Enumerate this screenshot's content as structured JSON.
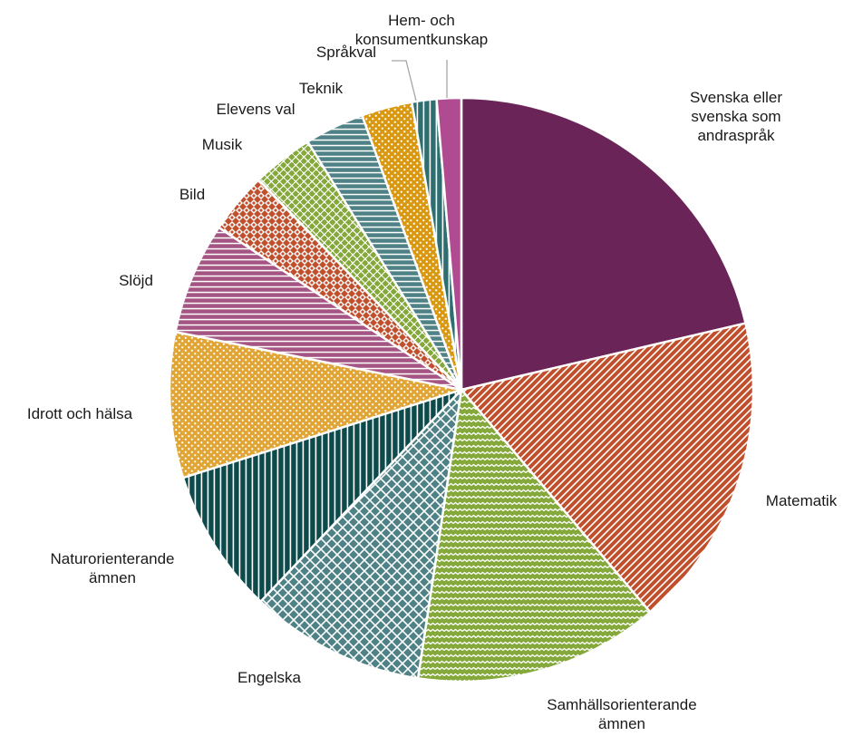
{
  "chart_data": {
    "type": "pie",
    "title": "",
    "unit": "",
    "start_angle_deg": 0,
    "direction": "clockwise",
    "slices": [
      {
        "label": [
          "Svenska eller",
          "svenska som",
          "andraspråk"
        ],
        "value": 22.0,
        "color": "#6b2457",
        "pattern": "solid"
      },
      {
        "label": [
          "Matematik"
        ],
        "value": 18.0,
        "color": "#c0502d",
        "pattern": "diagonal"
      },
      {
        "label": [
          "Samhällsorienterande",
          "ämnen"
        ],
        "value": 14.0,
        "color": "#84a83a",
        "pattern": "wave"
      },
      {
        "label": [
          "Engelska"
        ],
        "value": 10.0,
        "color": "#4f8286",
        "pattern": "lattice"
      },
      {
        "label": [
          "Naturorienterande",
          "ämnen"
        ],
        "value": 8.3,
        "color": "#0d4a4c",
        "pattern": "vertical"
      },
      {
        "label": [
          "Idrott och hälsa"
        ],
        "value": 8.3,
        "color": "#e0a534",
        "pattern": "dots"
      },
      {
        "label": [
          "Slöjd"
        ],
        "value": 6.4,
        "color": "#a55583",
        "pattern": "horizontal"
      },
      {
        "label": [
          "Bild"
        ],
        "value": 3.5,
        "color": "#c0502d",
        "pattern": "checker"
      },
      {
        "label": [
          "Musik"
        ],
        "value": 3.5,
        "color": "#84a83a",
        "pattern": "weave"
      },
      {
        "label": [
          "Elevens val"
        ],
        "value": 3.4,
        "color": "#4f8286",
        "pattern": "horizontal"
      },
      {
        "label": [
          "Teknik"
        ],
        "value": 2.9,
        "color": "#d9980f",
        "pattern": "dots"
      },
      {
        "label": [
          "Språkval"
        ],
        "value": 1.4,
        "color": "#2f6e70",
        "pattern": "vertical"
      },
      {
        "label": [
          "Hem- och",
          "konsumentkunskap"
        ],
        "value": 1.4,
        "color": "#b04a91",
        "pattern": "solid"
      }
    ]
  }
}
